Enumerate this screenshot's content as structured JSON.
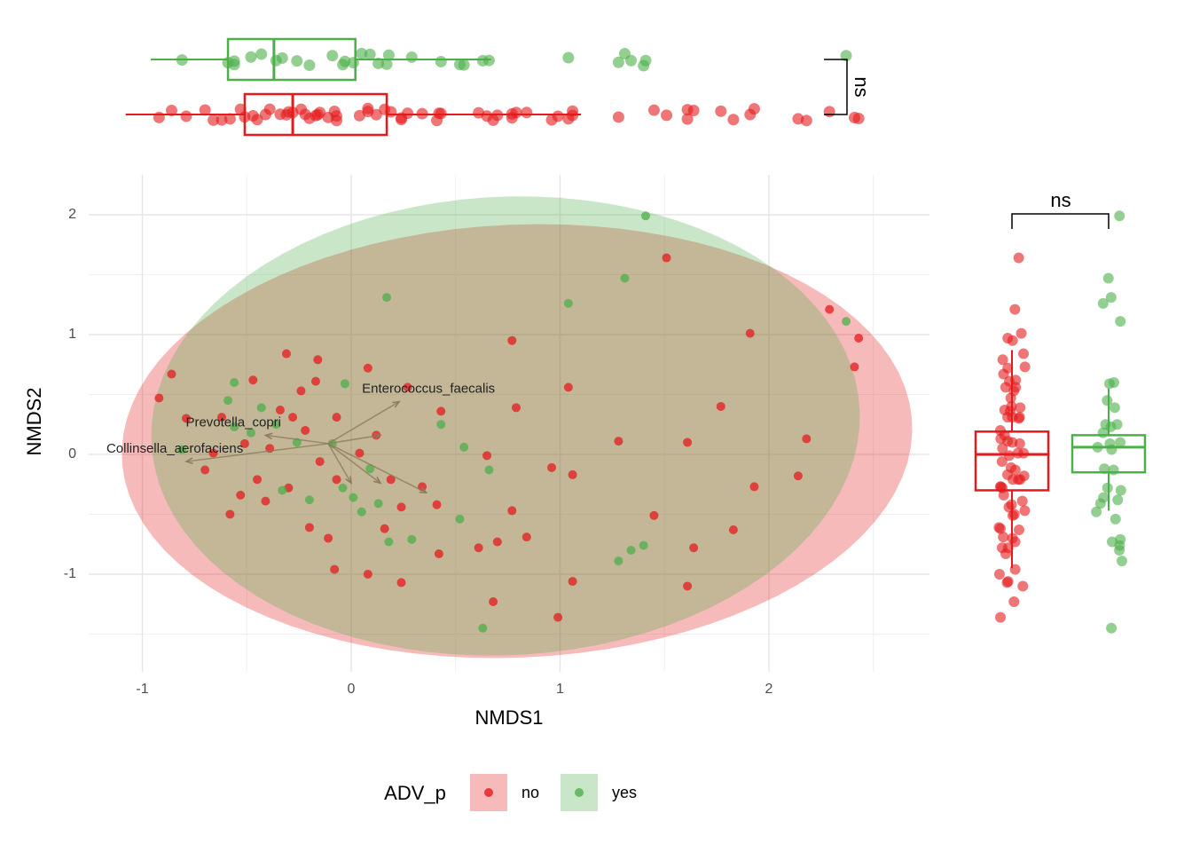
{
  "chart_data": {
    "type": "scatter",
    "xlabel": "NMDS1",
    "ylabel": "NMDS2",
    "legend_title": "ADV_p",
    "xlim": [
      -1.257,
      2.769
    ],
    "ylim": [
      -1.815,
      2.333
    ],
    "xticks": [
      -1,
      0,
      1,
      2
    ],
    "yticks": [
      -1,
      0,
      1,
      2
    ],
    "xminor": [
      -0.5,
      0.5,
      1.5,
      2.5
    ],
    "yminor": [
      -1.5,
      -0.5,
      0.5,
      1.5
    ],
    "grid": true,
    "significance": [
      "ns",
      "ns"
    ],
    "series": [
      {
        "name": "no",
        "color": "#e41a1c",
        "x": [
          -0.86,
          -0.92,
          1.51,
          0.77,
          2.29,
          2.43,
          2.41,
          1.91,
          -0.31,
          -0.16,
          0.08,
          -0.17,
          -0.47,
          0.27,
          1.04,
          0.79,
          0.43,
          1.77,
          2.18,
          1.28,
          1.61,
          2.14,
          1.93,
          0.65,
          0.96,
          1.06,
          0.77,
          1.45,
          1.83,
          1.64,
          0.84,
          0.7,
          0.61,
          0.42,
          1.06,
          1.61,
          0.99,
          0.68,
          -0.08,
          0.08,
          0.24,
          -0.58,
          -0.79,
          -0.53,
          -0.41,
          -0.2,
          -0.11,
          0.16,
          0.34,
          0.41,
          0.24,
          -0.34,
          -0.28,
          -0.22,
          -0.39,
          -0.45,
          -0.3,
          -0.15,
          -0.07,
          0.04,
          0.12,
          0.19,
          -0.62,
          -0.66,
          -0.7,
          -0.51,
          -0.24,
          -0.07
        ],
        "y": [
          0.67,
          0.47,
          1.64,
          0.95,
          1.21,
          0.97,
          0.73,
          1.01,
          0.84,
          0.79,
          0.72,
          0.61,
          0.62,
          0.56,
          0.56,
          0.39,
          0.36,
          0.4,
          0.13,
          0.11,
          0.1,
          -0.18,
          -0.27,
          -0.01,
          -0.11,
          -0.17,
          -0.47,
          -0.51,
          -0.63,
          -0.78,
          -0.69,
          -0.73,
          -0.78,
          -0.83,
          -1.06,
          -1.1,
          -1.36,
          -1.23,
          -0.96,
          -1.0,
          -1.07,
          -0.5,
          0.3,
          -0.34,
          -0.39,
          -0.61,
          -0.7,
          -0.62,
          -0.27,
          -0.42,
          -0.44,
          0.37,
          0.31,
          0.2,
          0.05,
          -0.21,
          -0.28,
          -0.06,
          -0.21,
          0.01,
          0.16,
          -0.21,
          0.31,
          0.01,
          -0.13,
          0.09,
          0.53,
          0.31
        ],
        "ellipse": {
          "cx": 0.794,
          "cy": 0.111,
          "ax": 1.89,
          "ay": 0.2,
          "bx": 0.1,
          "by": -1.8
        },
        "x_box": [
          -1.08,
          -0.51,
          -0.28,
          0.17,
          1.1
        ],
        "y_box": [
          -0.95,
          -0.3,
          0,
          0.19,
          0.87
        ]
      },
      {
        "name": "yes",
        "color": "#4daf4a",
        "x": [
          1.41,
          1.31,
          1.04,
          0.17,
          2.37,
          -0.56,
          -0.03,
          -0.59,
          -0.43,
          0.43,
          0.54,
          0.66,
          -0.81,
          -0.56,
          -0.26,
          -0.2,
          -0.04,
          0.05,
          0.13,
          0.52,
          0.29,
          0.18,
          1.4,
          1.34,
          1.28,
          0.63,
          0.01,
          -0.36,
          -0.48,
          -0.09,
          0.09,
          -0.33
        ],
        "y": [
          1.99,
          1.47,
          1.26,
          1.31,
          1.11,
          0.6,
          0.59,
          0.45,
          0.39,
          0.25,
          0.06,
          -0.13,
          0.04,
          0.23,
          0.1,
          -0.38,
          -0.28,
          -0.48,
          -0.41,
          -0.54,
          -0.71,
          -0.73,
          -0.76,
          -0.8,
          -0.89,
          -1.45,
          -0.36,
          0.25,
          0.18,
          0.09,
          -0.12,
          -0.3
        ],
        "ellipse": {
          "cx": 0.739,
          "cy": 0.237,
          "ax": 1.69,
          "ay": 0.25,
          "bx": 0.15,
          "by": -1.9
        },
        "x_box": [
          -0.96,
          -0.59,
          -0.37,
          0.02,
          0.67
        ],
        "y_box": [
          -0.47,
          -0.15,
          0.06,
          0.16,
          0.55
        ]
      }
    ],
    "arrows": [
      {
        "label": "Enterococcus_faecalis",
        "x0": -0.11,
        "y0": 0.09,
        "x1": 0.23,
        "y1": 0.44
      },
      {
        "label": "Prevotella_copri",
        "x0": -0.11,
        "y0": 0.09,
        "x1": -0.41,
        "y1": 0.16
      },
      {
        "label": "Collinsella_aerofaciens",
        "x0": -0.11,
        "y0": 0.09,
        "x1": -0.79,
        "y1": -0.06
      },
      {
        "label": null,
        "x0": -0.11,
        "y0": 0.09,
        "x1": 0.36,
        "y1": -0.32
      },
      {
        "label": null,
        "x0": -0.11,
        "y0": 0.09,
        "x1": 0.14,
        "y1": -0.24
      },
      {
        "label": null,
        "x0": -0.11,
        "y0": 0.09,
        "x1": 0,
        "y1": -0.24
      },
      {
        "label": null,
        "x0": -0.11,
        "y0": 0.09,
        "x1": 0.14,
        "y1": 0.16
      }
    ]
  }
}
